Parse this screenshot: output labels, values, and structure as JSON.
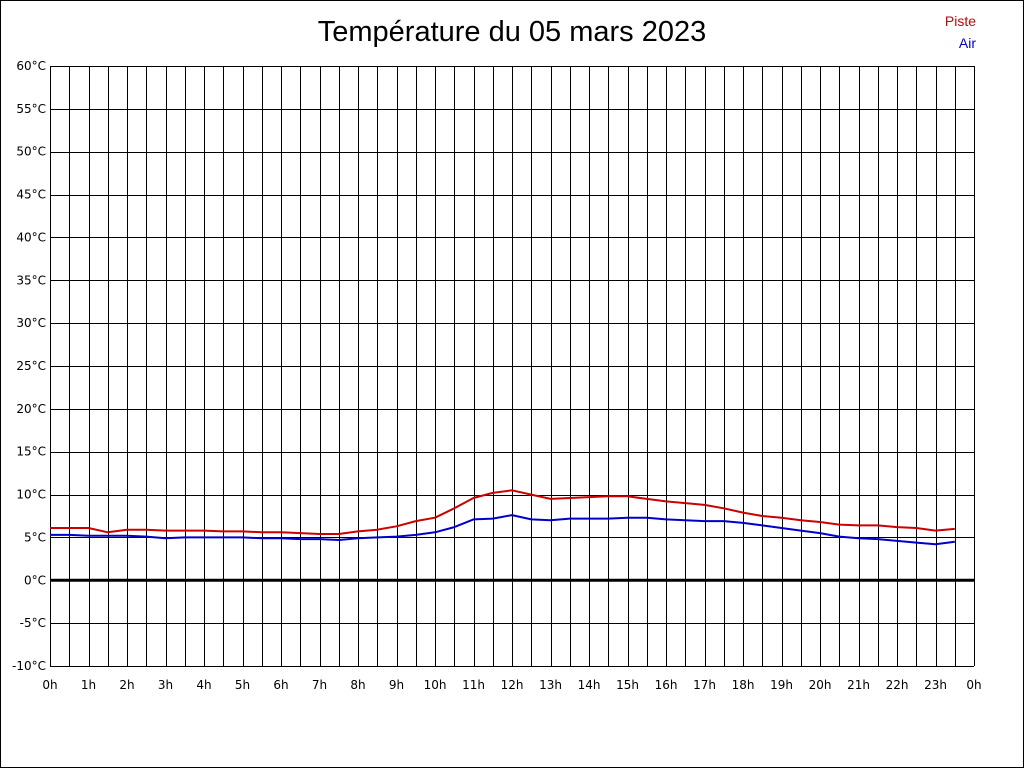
{
  "chart_data": {
    "type": "line",
    "title": "Température du 05 mars 2023",
    "ylim": [
      -10,
      60
    ],
    "yticks": [
      "60°C",
      "55°C",
      "50°C",
      "45°C",
      "40°C",
      "35°C",
      "30°C",
      "25°C",
      "20°C",
      "15°C",
      "10°C",
      "5°C",
      "0°C",
      "-5°C",
      "-10°C"
    ],
    "ytick_values": [
      60,
      55,
      50,
      45,
      40,
      35,
      30,
      25,
      20,
      15,
      10,
      5,
      0,
      -5,
      -10
    ],
    "xlim": [
      0,
      24
    ],
    "xticks": [
      "0h",
      "1h",
      "2h",
      "3h",
      "4h",
      "5h",
      "6h",
      "7h",
      "8h",
      "9h",
      "10h",
      "11h",
      "12h",
      "13h",
      "14h",
      "15h",
      "16h",
      "17h",
      "18h",
      "19h",
      "20h",
      "21h",
      "22h",
      "23h",
      "0h"
    ],
    "grid": true,
    "zero_line": true,
    "legend_placement": "top-right",
    "x": [
      0,
      0.5,
      1,
      1.5,
      2,
      2.5,
      3,
      3.5,
      4,
      4.5,
      5,
      5.5,
      6,
      6.5,
      7,
      7.5,
      8,
      8.5,
      9,
      9.5,
      10,
      10.5,
      11,
      11.5,
      12,
      12.5,
      13,
      13.5,
      14,
      14.5,
      15,
      15.5,
      16,
      16.5,
      17,
      17.5,
      18,
      18.5,
      19,
      19.5,
      20,
      20.5,
      21,
      21.5,
      22,
      22.5,
      23,
      23.5
    ],
    "series": [
      {
        "name": "Piste",
        "color": "#cc0000",
        "values": [
          6.1,
          6.1,
          6.1,
          5.6,
          5.9,
          5.9,
          5.8,
          5.8,
          5.8,
          5.7,
          5.7,
          5.6,
          5.6,
          5.5,
          5.4,
          5.4,
          5.7,
          5.9,
          6.3,
          6.9,
          7.3,
          8.4,
          9.6,
          10.2,
          10.5,
          10.0,
          9.5,
          9.6,
          9.7,
          9.8,
          9.8,
          9.5,
          9.2,
          9.0,
          8.8,
          8.4,
          7.9,
          7.5,
          7.3,
          7.0,
          6.8,
          6.5,
          6.4,
          6.4,
          6.2,
          6.1,
          5.8,
          6.0
        ]
      },
      {
        "name": "Air",
        "color": "#0000cc",
        "values": [
          5.3,
          5.3,
          5.2,
          5.2,
          5.2,
          5.1,
          4.9,
          5.0,
          5.0,
          5.0,
          5.0,
          4.9,
          4.9,
          4.8,
          4.8,
          4.7,
          4.9,
          5.0,
          5.1,
          5.3,
          5.6,
          6.2,
          7.1,
          7.2,
          7.6,
          7.1,
          7.0,
          7.2,
          7.2,
          7.2,
          7.3,
          7.3,
          7.1,
          7.0,
          6.9,
          6.9,
          6.7,
          6.4,
          6.1,
          5.8,
          5.5,
          5.1,
          4.9,
          4.8,
          4.6,
          4.4,
          4.2,
          4.5
        ]
      }
    ]
  }
}
